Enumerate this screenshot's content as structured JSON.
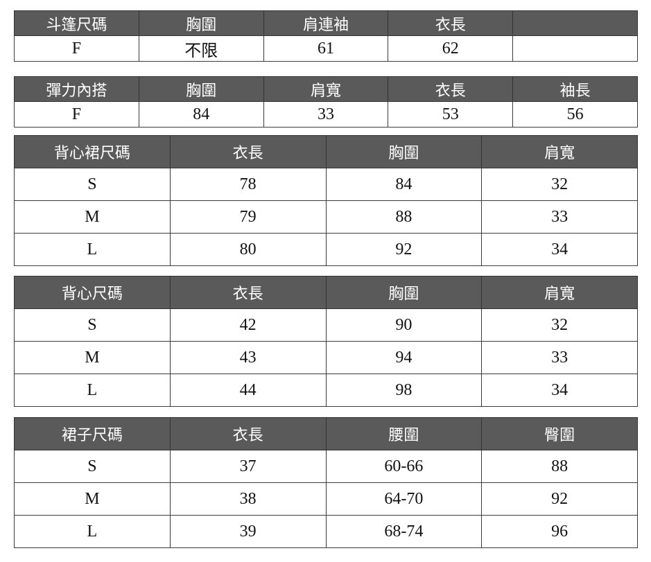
{
  "tables": [
    {
      "headers": [
        "斗篷尺碼",
        "胸圍",
        "肩連袖",
        "衣長",
        ""
      ],
      "rows": [
        [
          "F",
          "不限",
          "61",
          "62",
          ""
        ]
      ]
    },
    {
      "headers": [
        "彈力內搭",
        "胸圍",
        "肩寬",
        "衣長",
        "袖長"
      ],
      "rows": [
        [
          "F",
          "84",
          "33",
          "53",
          "56"
        ]
      ]
    },
    {
      "headers": [
        "背心裙尺碼",
        "衣長",
        "胸圍",
        "肩寬"
      ],
      "rows": [
        [
          "S",
          "78",
          "84",
          "32"
        ],
        [
          "M",
          "79",
          "88",
          "33"
        ],
        [
          "L",
          "80",
          "92",
          "34"
        ]
      ]
    },
    {
      "headers": [
        "背心尺碼",
        "衣長",
        "胸圍",
        "肩寬"
      ],
      "rows": [
        [
          "S",
          "42",
          "90",
          "32"
        ],
        [
          "M",
          "43",
          "94",
          "33"
        ],
        [
          "L",
          "44",
          "98",
          "34"
        ]
      ]
    },
    {
      "headers": [
        "裙子尺碼",
        "衣長",
        "腰圍",
        "臀圍"
      ],
      "rows": [
        [
          "S",
          "37",
          "60-66",
          "88"
        ],
        [
          "M",
          "38",
          "64-70",
          "92"
        ],
        [
          "L",
          "39",
          "68-74",
          "96"
        ]
      ]
    }
  ],
  "colors": {
    "header_bg": "#5a5a5a",
    "header_text": "#ffffff",
    "border": "#3a3a3a"
  }
}
